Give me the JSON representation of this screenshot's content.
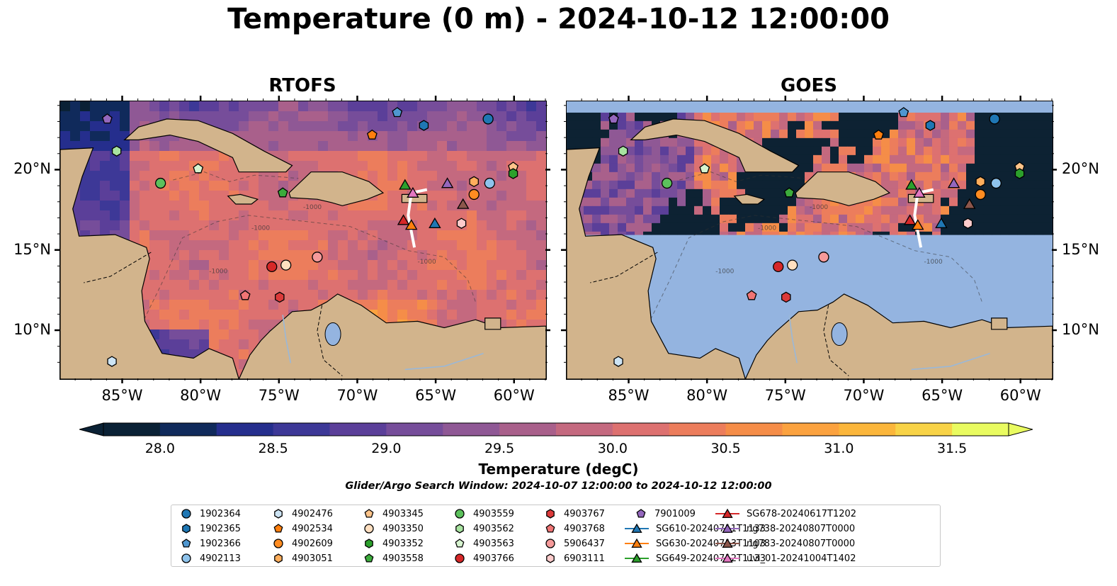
{
  "title": "Temperature (0 m) - 2024-10-12 12:00:00",
  "panels": [
    {
      "title": "RTOFS",
      "shading": "model"
    },
    {
      "title": "GOES",
      "shading": "satellite"
    }
  ],
  "map": {
    "lon_range": [
      -89,
      -58
    ],
    "lat_range": [
      7,
      24.3
    ],
    "lon_ticks": [
      {
        "lon": -85,
        "label": "85°W"
      },
      {
        "lon": -80,
        "label": "80°W"
      },
      {
        "lon": -75,
        "label": "75°W"
      },
      {
        "lon": -70,
        "label": "70°W"
      },
      {
        "lon": -65,
        "label": "65°W"
      },
      {
        "lon": -60,
        "label": "60°W"
      }
    ],
    "lat_ticks": [
      {
        "lat": 20,
        "label": "20°N"
      },
      {
        "lat": 15,
        "label": "15°N"
      },
      {
        "lat": 10,
        "label": "10°N"
      }
    ],
    "contour_label": "-1000",
    "colors": {
      "land": "#d2b48c",
      "ocean_mask": "#94b4e0",
      "river": "#9ab8d8",
      "goes_cloud": "#0d2233"
    }
  },
  "colorbar": {
    "label": "Temperature (degC)",
    "min": 28.0,
    "max": 31.5,
    "step": 0.25,
    "ticks": [
      "28.0",
      "28.5",
      "29.0",
      "29.5",
      "30.0",
      "30.5",
      "31.0",
      "31.5"
    ],
    "colors": [
      "#0a2135",
      "#102a5b",
      "#252e8d",
      "#3d3897",
      "#5b3f99",
      "#764d9a",
      "#8f5895",
      "#a9608b",
      "#c4697f",
      "#dd7170",
      "#ec7d5c",
      "#f58d48",
      "#fba23f",
      "#fbb63b",
      "#f8d347",
      "#e9fb60"
    ]
  },
  "search_window": "Glider/Argo Search Window: 2024-10-07 12:00:00 to 2024-10-12 12:00:00",
  "legend": [
    {
      "label": "1902364",
      "marker": "circle",
      "color": "#1f77b4"
    },
    {
      "label": "1902365",
      "marker": "hexagon",
      "color": "#1f77b4"
    },
    {
      "label": "1902366",
      "marker": "pentagon",
      "color": "#4f97d0"
    },
    {
      "label": "4902113",
      "marker": "circle",
      "color": "#8ec3ec"
    },
    {
      "label": "4902476",
      "marker": "hexagon",
      "color": "#cde4f4"
    },
    {
      "label": "4902534",
      "marker": "pentagon",
      "color": "#ff7f0e"
    },
    {
      "label": "4902609",
      "marker": "circle",
      "color": "#ff8c21"
    },
    {
      "label": "4903051",
      "marker": "hexagon",
      "color": "#ffae5c"
    },
    {
      "label": "4903345",
      "marker": "pentagon",
      "color": "#ffc48a"
    },
    {
      "label": "4903350",
      "marker": "circle",
      "color": "#ffdfc0"
    },
    {
      "label": "4903352",
      "marker": "hexagon",
      "color": "#2ca02c"
    },
    {
      "label": "4903558",
      "marker": "pentagon",
      "color": "#3cab3c"
    },
    {
      "label": "4903559",
      "marker": "circle",
      "color": "#5cc15c"
    },
    {
      "label": "4903562",
      "marker": "hexagon",
      "color": "#a8e3a0"
    },
    {
      "label": "4903563",
      "marker": "pentagon",
      "color": "#d7f4d0"
    },
    {
      "label": "4903766",
      "marker": "circle",
      "color": "#d62728"
    },
    {
      "label": "4903767",
      "marker": "hexagon",
      "color": "#dc3a3a"
    },
    {
      "label": "4903768",
      "marker": "pentagon",
      "color": "#f07575"
    },
    {
      "label": "5906437",
      "marker": "circle",
      "color": "#f59a9a"
    },
    {
      "label": "6903111",
      "marker": "hexagon",
      "color": "#fdcccc"
    },
    {
      "label": "7901009",
      "marker": "pentagon",
      "color": "#9467bd"
    },
    {
      "label": "SG610-20240711T1133",
      "marker": "triangle",
      "color": "#1f77b4"
    },
    {
      "label": "SG630-20240713T1103",
      "marker": "triangle",
      "color": "#ff7f0e"
    },
    {
      "label": "SG649-20240712T1133",
      "marker": "triangle",
      "color": "#2ca02c"
    },
    {
      "label": "SG678-20240617T1202",
      "marker": "triangle",
      "color": "#d62728"
    },
    {
      "label": "ng738-20240807T0000",
      "marker": "triangle",
      "color": "#9467bd"
    },
    {
      "label": "ng783-20240807T0000",
      "marker": "triangle",
      "color": "#8c564b"
    },
    {
      "label": "uvi_01-20241004T1402",
      "marker": "triangle",
      "color": "#e377c2"
    }
  ],
  "markers": [
    {
      "id": "1902364",
      "lon": -61.7,
      "lat": 23.2
    },
    {
      "id": "1902365",
      "lon": -65.8,
      "lat": 22.8
    },
    {
      "id": "1902366",
      "lon": -67.5,
      "lat": 23.6
    },
    {
      "id": "4902113",
      "lon": -61.6,
      "lat": 19.2
    },
    {
      "id": "4902476",
      "lon": -85.7,
      "lat": 8.1
    },
    {
      "id": "4902534",
      "lon": -69.1,
      "lat": 22.2
    },
    {
      "id": "4902609",
      "lon": -62.6,
      "lat": 18.5
    },
    {
      "id": "4903051",
      "lon": -62.6,
      "lat": 19.3
    },
    {
      "id": "4903345",
      "lon": -60.1,
      "lat": 20.2
    },
    {
      "id": "4903350",
      "lon": -74.6,
      "lat": 14.1
    },
    {
      "id": "4903352",
      "lon": -60.1,
      "lat": 19.8
    },
    {
      "id": "4903558",
      "lon": -74.8,
      "lat": 18.6
    },
    {
      "id": "4903559",
      "lon": -82.6,
      "lat": 19.2
    },
    {
      "id": "4903562",
      "lon": -85.4,
      "lat": 21.2
    },
    {
      "id": "4903563",
      "lon": -80.2,
      "lat": 20.1
    },
    {
      "id": "4903766",
      "lon": -75.5,
      "lat": 14.0
    },
    {
      "id": "4903767",
      "lon": -75.0,
      "lat": 12.1
    },
    {
      "id": "4903768",
      "lon": -77.2,
      "lat": 12.2
    },
    {
      "id": "5906437",
      "lon": -72.6,
      "lat": 14.6
    },
    {
      "id": "6903111",
      "lon": -63.4,
      "lat": 16.7
    },
    {
      "id": "7901009",
      "lon": -86.0,
      "lat": 23.2
    },
    {
      "id": "SG610-20240711T1133",
      "lon": -65.1,
      "lat": 16.7
    },
    {
      "id": "SG630-20240713T1103",
      "lon": -66.6,
      "lat": 16.6
    },
    {
      "id": "SG649-20240712T1133",
      "lon": -67.0,
      "lat": 19.1
    },
    {
      "id": "SG678-20240617T1202",
      "lon": -67.1,
      "lat": 16.9
    },
    {
      "id": "ng738-20240807T0000",
      "lon": -64.3,
      "lat": 19.2
    },
    {
      "id": "ng783-20240807T0000",
      "lon": -63.3,
      "lat": 17.9
    },
    {
      "id": "uvi_01-20241004T1402",
      "lon": -66.5,
      "lat": 18.6
    }
  ]
}
